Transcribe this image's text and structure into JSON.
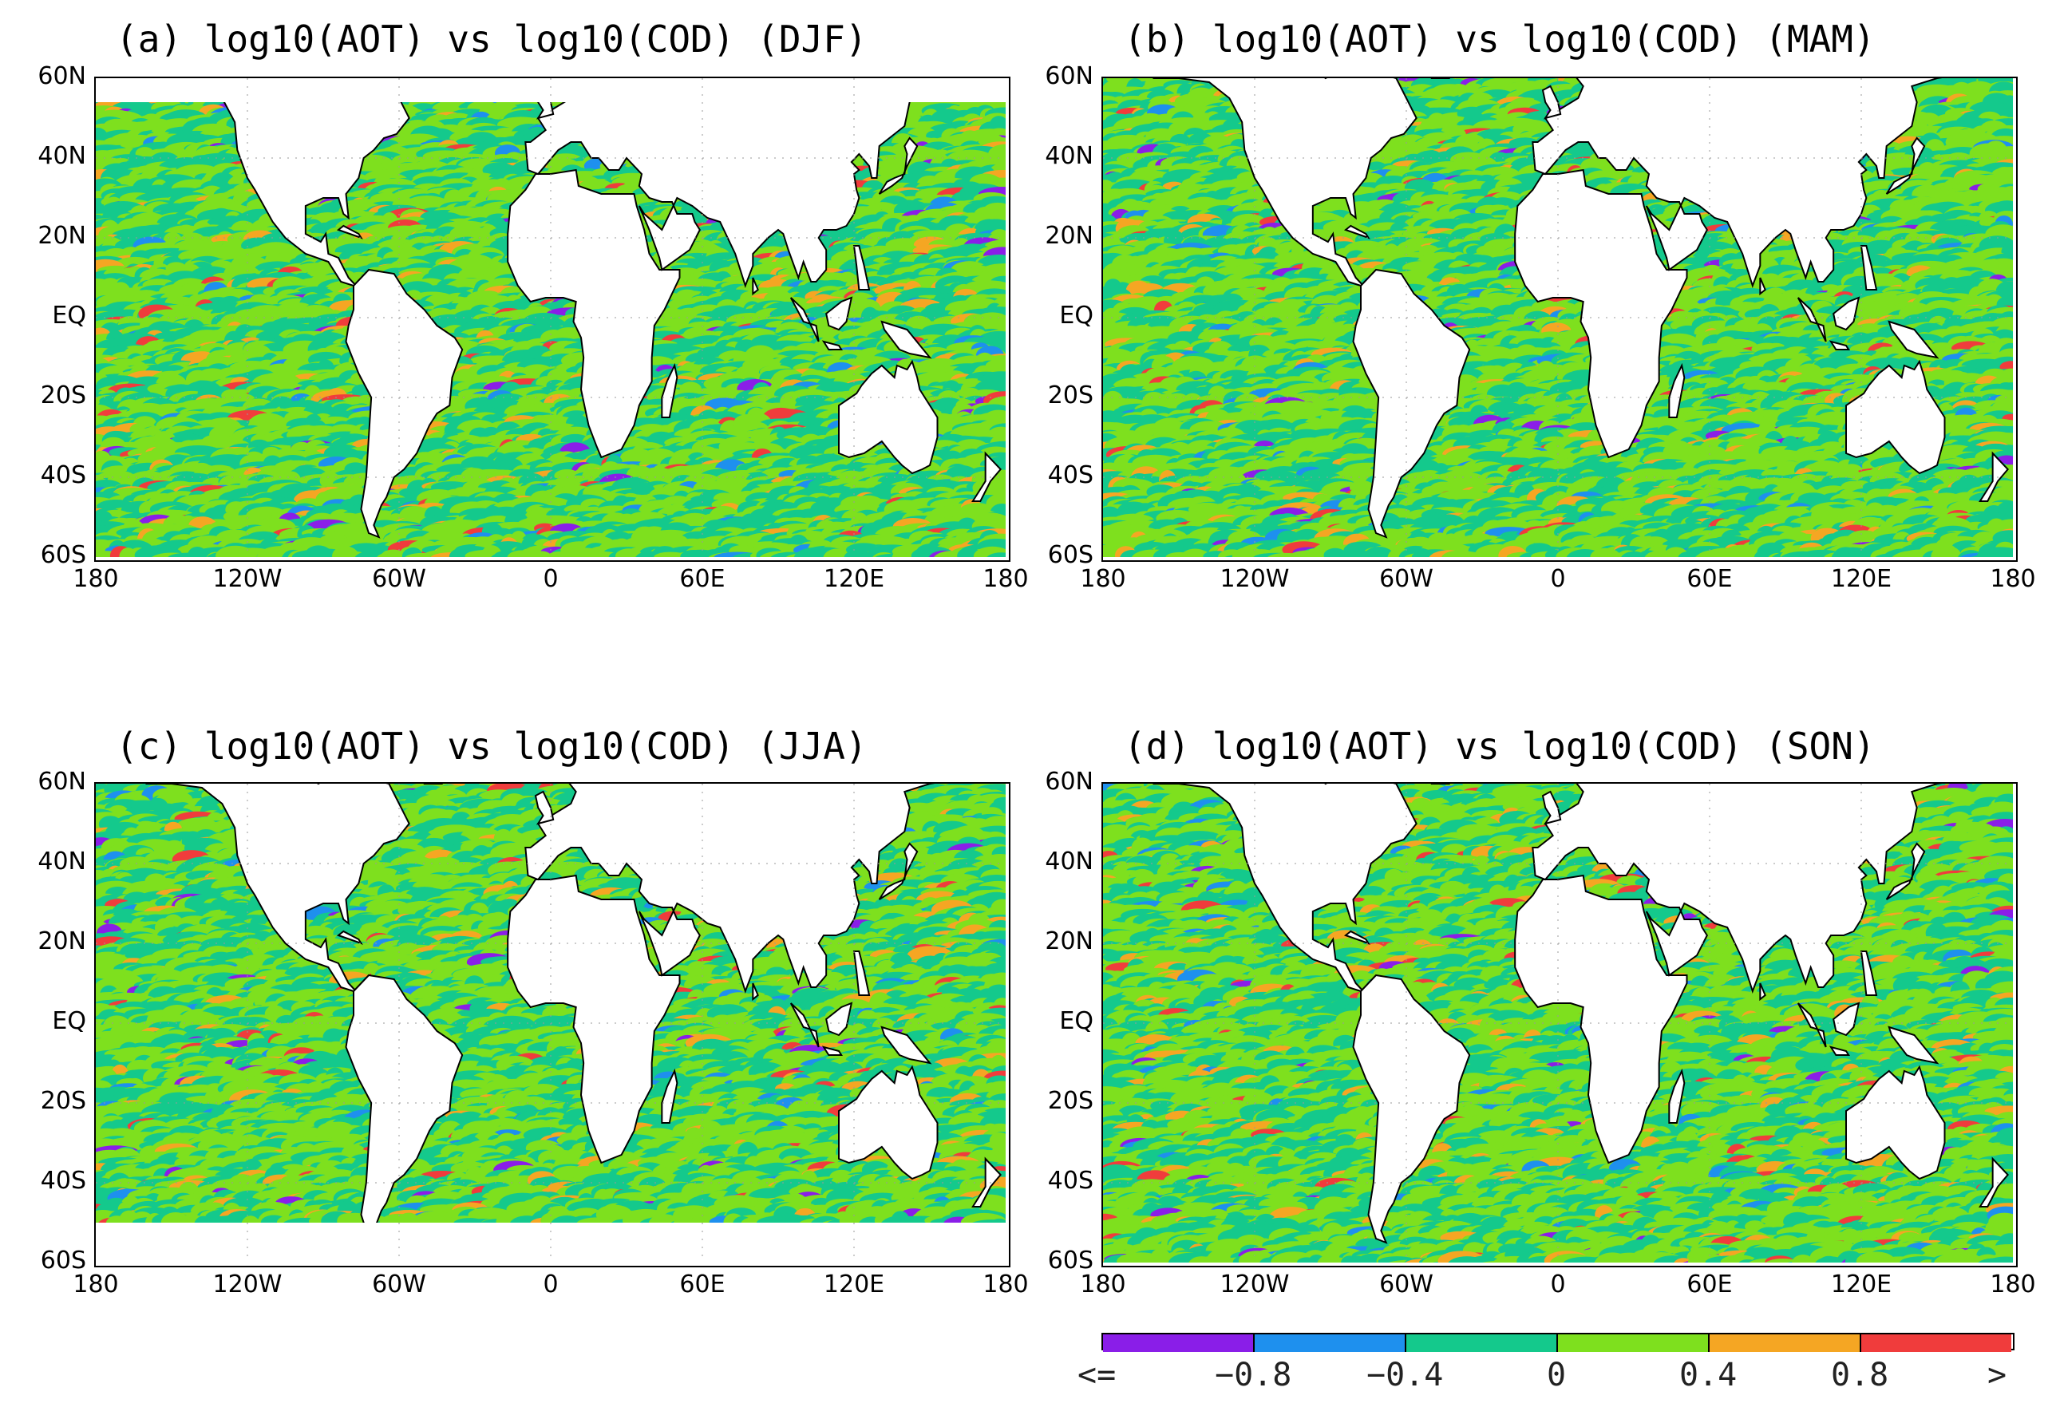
{
  "panels": [
    {
      "id": "a",
      "title": "(a) log10(AOT) vs log10(COD) (DJF)"
    },
    {
      "id": "b",
      "title": "(b) log10(AOT) vs log10(COD) (MAM)"
    },
    {
      "id": "c",
      "title": "(c) log10(AOT) vs log10(COD) (JJA)"
    },
    {
      "id": "d",
      "title": "(d) log10(AOT) vs log10(COD) (SON)"
    }
  ],
  "lat_ticks": [
    "60N",
    "40N",
    "20N",
    "EQ",
    "20S",
    "40S",
    "60S"
  ],
  "lon_ticks": [
    "180",
    "120W",
    "60W",
    "0",
    "60E",
    "120E",
    "180"
  ],
  "colorbar": {
    "colors": [
      "#8a1ee8",
      "#1e90ee",
      "#14c98c",
      "#7ee01e",
      "#f5a623",
      "#f03c3c"
    ],
    "labels": [
      "<=",
      "−0.8",
      "−0.4",
      "0",
      "0.4",
      "0.8",
      ">"
    ]
  },
  "land_color": "#ffffff",
  "coast_color": "#000000"
}
